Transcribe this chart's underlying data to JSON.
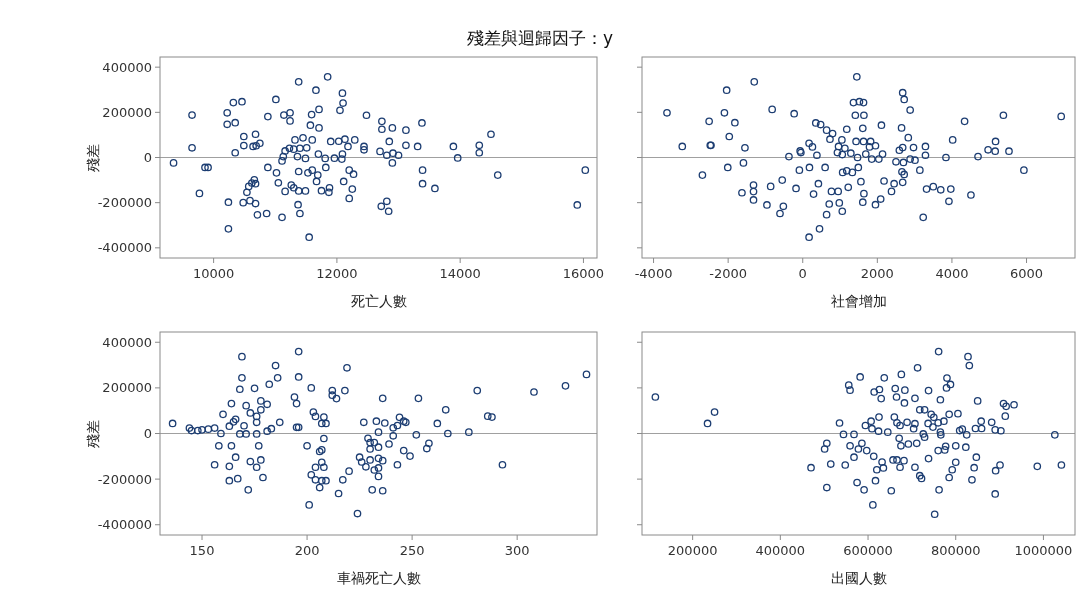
{
  "chart_data": [
    {
      "type": "scatter",
      "title": "殘差與迴歸因子：y",
      "xlabel": "死亡人數",
      "ylabel": "殘差",
      "marker": "circle",
      "xlim": [
        9130,
        16220
      ],
      "ylim": [
        -445000,
        445000
      ],
      "xticks": [
        10000,
        12000,
        14000,
        16000
      ],
      "yticks": [
        -400000,
        -200000,
        0,
        200000,
        400000
      ],
      "ref_lines": [
        {
          "axis": "y",
          "value": 0,
          "color": "#a0a0a0"
        }
      ],
      "series": [
        {
          "color": "#1c3d72",
          "x": [
            9350,
            9650,
            9650,
            9770,
            9860,
            9910,
            10220,
            10320,
            10460,
            10220,
            10350,
            10240,
            10240,
            10350,
            10490,
            10490,
            10680,
            10640,
            10690,
            10750,
            10660,
            10620,
            10680,
            10570,
            10540,
            10590,
            10480,
            10680,
            10710,
            10860,
            10880,
            11010,
            10880,
            11020,
            11050,
            11110,
            11160,
            11110,
            11140,
            11240,
            11240,
            11320,
            11450,
            11600,
            11160,
            11230,
            11300,
            11400,
            11510,
            11360,
            11130,
            11490,
            11380,
            11660,
            11850,
            11590,
            11710,
            11570,
            11710,
            11700,
            11810,
            11960,
            12080,
            12090,
            11900,
            12030,
            12130,
            12290,
            12180,
            12440,
            12440,
            12090,
            12100,
            12050,
            12480,
            11380,
            11530,
            11600,
            11690,
            11670,
            11820,
            11260,
            11300,
            11380,
            11490,
            11370,
            11400,
            11550,
            11750,
            11870,
            11880,
            12110,
            12200,
            12270,
            12250,
            12200,
            12730,
            12730,
            12900,
            13120,
            13380,
            12850,
            12700,
            12810,
            12910,
            13000,
            13120,
            13310,
            12900,
            12720,
            12810,
            12840,
            13390,
            13390,
            13590,
            13890,
            13960,
            14310,
            14310,
            14500,
            14610,
            15900,
            16030
          ],
          "values": [
            -24000,
            188000,
            43000,
            -159000,
            -44000,
            -44000,
            198000,
            243000,
            247000,
            147000,
            154000,
            -198000,
            -316000,
            21000,
            93000,
            53000,
            103000,
            49000,
            52000,
            63000,
            -99000,
            -113000,
            -116000,
            -128000,
            -154000,
            -191000,
            -200000,
            -204000,
            -254000,
            -248000,
            181000,
            257000,
            -44000,
            -68000,
            -112000,
            -265000,
            -150000,
            -15000,
            188000,
            198000,
            162000,
            78000,
            87000,
            78000,
            29000,
            41000,
            37000,
            41000,
            43000,
            4000,
            4000,
            -4000,
            335000,
            298000,
            357000,
            190000,
            213000,
            143000,
            131000,
            15000,
            -4000,
            -3000,
            -7000,
            15000,
            71000,
            72000,
            81000,
            78000,
            49000,
            49000,
            34000,
            285000,
            241000,
            209000,
            187000,
            -62000,
            -68000,
            -56000,
            -78000,
            -106000,
            -44000,
            -122000,
            -134000,
            -148000,
            -148000,
            -209000,
            -248000,
            -353000,
            -147000,
            -154000,
            -134000,
            -106000,
            -56000,
            -74000,
            -140000,
            -181000,
            160000,
            125000,
            131000,
            121000,
            153000,
            71000,
            27000,
            10000,
            19000,
            10000,
            54000,
            49000,
            -24000,
            -216000,
            -194000,
            -238000,
            -56000,
            -116000,
            -137000,
            49000,
            -2000,
            54000,
            21000,
            103000,
            -78000,
            -210000,
            -56000
          ]
        }
      ]
    },
    {
      "type": "scatter",
      "xlabel": "社會增加",
      "marker": "circle",
      "tick_labels": "x",
      "xlim": [
        -4310,
        7300
      ],
      "ylim": [
        -445000,
        445000
      ],
      "xticks": [
        -4000,
        -2000,
        0,
        2000,
        4000,
        6000
      ],
      "yticks": [
        -400000,
        -200000,
        0,
        200000,
        400000
      ],
      "ref_lines": [
        {
          "axis": "y",
          "value": 0,
          "color": "#a0a0a0"
        }
      ],
      "series": [
        {
          "color": "#1c3d72",
          "x": [
            -3640,
            -3230,
            -2510,
            -2480,
            -2460,
            -2690,
            -2040,
            -1300,
            -2100,
            -1820,
            -1970,
            -1550,
            -2010,
            -1590,
            -820,
            -230,
            -1630,
            -1320,
            -1320,
            -1320,
            -960,
            -860,
            -550,
            -520,
            -610,
            -370,
            -70,
            -50,
            170,
            260,
            380,
            -90,
            180,
            600,
            -180,
            290,
            420,
            450,
            170,
            640,
            710,
            980,
            1060,
            770,
            950,
            1220,
            350,
            480,
            640,
            800,
            730,
            1050,
            960,
            1130,
            930,
            1060,
            1290,
            1180,
            1610,
            1430,
            1630,
            1820,
            1950,
            1790,
            1470,
            1690,
            1850,
            2040,
            2140,
            1070,
            1180,
            1330,
            1490,
            1560,
            1640,
            1610,
            1950,
            2090,
            2180,
            2450,
            2380,
            1450,
            1360,
            1520,
            1630,
            1410,
            1640,
            2110,
            2650,
            2830,
            2680,
            2720,
            2880,
            2590,
            2680,
            2970,
            3290,
            2500,
            2700,
            2880,
            3010,
            2660,
            2720,
            2680,
            3140,
            3290,
            3320,
            3500,
            3700,
            3970,
            3920,
            3230,
            3840,
            4020,
            4340,
            4510,
            4700,
            4970,
            5160,
            5170,
            5530,
            5380,
            5930,
            6930
          ],
          "values": [
            198000,
            49000,
            160000,
            54000,
            54000,
            -78000,
            298000,
            335000,
            198000,
            154000,
            93000,
            43000,
            -44000,
            -24000,
            213000,
            194000,
            -156000,
            -122000,
            -151000,
            -188000,
            -210000,
            -128000,
            -100000,
            -216000,
            -248000,
            4000,
            29000,
            22000,
            63000,
            47000,
            10000,
            -56000,
            -44000,
            -44000,
            -137000,
            -162000,
            -116000,
            -316000,
            -353000,
            -253000,
            -206000,
            -201000,
            -238000,
            -150000,
            -150000,
            -132000,
            153000,
            146000,
            121000,
            106000,
            81000,
            78000,
            49000,
            41000,
            22000,
            13000,
            19000,
            125000,
            129000,
            71000,
            71000,
            71000,
            52000,
            47000,
            0,
            15000,
            -7000,
            -7000,
            15000,
            -66000,
            -59000,
            -66000,
            -44000,
            -107000,
            -160000,
            -198000,
            -209000,
            -184000,
            -104000,
            -116000,
            -150000,
            357000,
            243000,
            247000,
            243000,
            187000,
            187000,
            143000,
            131000,
            88000,
            287000,
            257000,
            210000,
            32000,
            44000,
            44000,
            49000,
            -19000,
            -22000,
            -7000,
            -12000,
            -63000,
            -75000,
            -110000,
            -56000,
            10000,
            -140000,
            -129000,
            -143000,
            -140000,
            -194000,
            -265000,
            0,
            78000,
            160000,
            -166000,
            4000,
            34000,
            28000,
            71000,
            28000,
            187000,
            -56000,
            182000
          ]
        }
      ]
    },
    {
      "type": "scatter",
      "xlabel": "車禍死亡人數",
      "ylabel": "殘差",
      "marker": "circle",
      "xlim": [
        130,
        338
      ],
      "ylim": [
        -445000,
        445000
      ],
      "xticks": [
        150,
        200,
        250,
        300
      ],
      "yticks": [
        -400000,
        -200000,
        0,
        200000,
        400000
      ],
      "ref_lines": [
        {
          "axis": "y",
          "value": 0,
          "color": "#a0a0a0"
        }
      ],
      "series": [
        {
          "color": "#1c3d72",
          "x": [
            136,
            144,
            145,
            148,
            150,
            153,
            156,
            159,
            158,
            164,
            156,
            163,
            163,
            167,
            166,
            172,
            160,
            164,
            163,
            165,
            166,
            168,
            171,
            169,
            169,
            168,
            170,
            171,
            175,
            173,
            176,
            178,
            181,
            178,
            176,
            176,
            177,
            173,
            176,
            178,
            179,
            182,
            185,
            186,
            181,
            183,
            187,
            194,
            195,
            196,
            196,
            195,
            196,
            202,
            200,
            203,
            204,
            208,
            207,
            209,
            208,
            207,
            206,
            207,
            208,
            204,
            202,
            204,
            207,
            209,
            206,
            201,
            212,
            212,
            214,
            218,
            219,
            215,
            220,
            217,
            224,
            227,
            229,
            230,
            232,
            234,
            230,
            225,
            226,
            228,
            230,
            234,
            236,
            232,
            234,
            234,
            231,
            236,
            233,
            234,
            237,
            241,
            243,
            244,
            246,
            247,
            239,
            241,
            236,
            243,
            246,
            249,
            252,
            253,
            257,
            258,
            262,
            266,
            267,
            277,
            281,
            286,
            288,
            293,
            308,
            323,
            333
          ],
          "values": [
            44000,
            24000,
            13000,
            13000,
            16000,
            19000,
            24000,
            0,
            -54000,
            -54000,
            -137000,
            -144000,
            -207000,
            -198000,
            -104000,
            -247000,
            84000,
            131000,
            32000,
            51000,
            62000,
            -2000,
            -2000,
            337000,
            244000,
            194000,
            34000,
            122000,
            198000,
            90000,
            75000,
            104000,
            128000,
            143000,
            49000,
            -2000,
            -54000,
            -123000,
            -148000,
            -116000,
            -193000,
            216000,
            298000,
            244000,
            10000,
            21000,
            49000,
            160000,
            131000,
            359000,
            248000,
            27000,
            27000,
            200000,
            -54000,
            94000,
            75000,
            72000,
            44000,
            44000,
            -22000,
            -72000,
            -79000,
            -126000,
            -148000,
            -148000,
            -181000,
            -203000,
            -207000,
            -207000,
            -237000,
            -313000,
            188000,
            168000,
            153000,
            188000,
            288000,
            -263000,
            -165000,
            -203000,
            -351000,
            49000,
            -21000,
            -40000,
            -40000,
            -60000,
            -68000,
            -104000,
            -125000,
            -146000,
            -116000,
            -109000,
            -119000,
            -160000,
            -151000,
            -188000,
            -247000,
            -251000,
            54000,
            6000,
            46000,
            25000,
            35000,
            71000,
            54000,
            49000,
            -46000,
            -10000,
            154000,
            -137000,
            -75000,
            -99000,
            -6000,
            154000,
            -66000,
            -43000,
            44000,
            104000,
            0,
            6000,
            188000,
            76000,
            72000,
            -137000,
            182000,
            209000,
            259000
          ]
        }
      ]
    },
    {
      "type": "scatter",
      "xlabel": "出國人數",
      "marker": "circle",
      "tick_labels": "x",
      "xlim": [
        84500,
        1072000
      ],
      "ylim": [
        -445000,
        445000
      ],
      "xticks": [
        200000,
        400000,
        600000,
        800000,
        1000000
      ],
      "yticks": [
        -400000,
        -200000,
        0,
        200000,
        400000
      ],
      "ref_lines": [
        {
          "axis": "y",
          "value": 0,
          "color": "#a0a0a0"
        }
      ],
      "series": [
        {
          "color": "#1c3d72",
          "x": [
            115000,
            234000,
            250000,
            470000,
            506000,
            501000,
            515000,
            506000,
            535000,
            544000,
            568000,
            548000,
            556000,
            559000,
            559000,
            568000,
            582000,
            586000,
            578000,
            597000,
            594000,
            607000,
            609000,
            624000,
            645000,
            575000,
            591000,
            611000,
            617000,
            613000,
            620000,
            632000,
            635000,
            614000,
            626000,
            630000,
            637000,
            625000,
            653000,
            662000,
            665000,
            684000,
            676000,
            683000,
            707000,
            713000,
            660000,
            666000,
            673000,
            689000,
            707000,
            718000,
            729000,
            671000,
            675000,
            692000,
            711000,
            729000,
            704000,
            726000,
            737000,
            657000,
            666000,
            682000,
            673000,
            707000,
            718000,
            722000,
            738000,
            738000,
            744000,
            750000,
            760000,
            773000,
            785000,
            765000,
            761000,
            780000,
            788000,
            779000,
            805000,
            765000,
            766000,
            748000,
            760000,
            775000,
            777000,
            800000,
            823000,
            762000,
            752000,
            785000,
            792000,
            800000,
            809000,
            815000,
            825000,
            828000,
            831000,
            850000,
            845000,
            859000,
            858000,
            847000,
            842000,
            837000,
            882000,
            890000,
            903000,
            909000,
            915000,
            933000,
            913000,
            891000,
            901000,
            890000,
            986000,
            1026000,
            1041000
          ],
          "values": [
            160000,
            44000,
            94000,
            -150000,
            -43000,
            -68000,
            -134000,
            -237000,
            46000,
            -4000,
            -4000,
            -138000,
            212000,
            190000,
            -54000,
            -104000,
            248000,
            -43000,
            -68000,
            -75000,
            35000,
            54000,
            21000,
            10000,
            6000,
            -215000,
            -247000,
            -313000,
            -207000,
            -100000,
            -159000,
            -125000,
            -151000,
            182000,
            193000,
            153000,
            244000,
            72000,
            -251000,
            197000,
            160000,
            190000,
            259000,
            134000,
            154000,
            288000,
            72000,
            47000,
            35000,
            49000,
            43000,
            104000,
            104000,
            -21000,
            -54000,
            -46000,
            -43000,
            -16000,
            21000,
            -2000,
            44000,
            -116000,
            -116000,
            -119000,
            -148000,
            -148000,
            -185000,
            -197000,
            -110000,
            188000,
            84000,
            71000,
            47000,
            54000,
            84000,
            148000,
            359000,
            243000,
            215000,
            200000,
            87000,
            6000,
            -6000,
            28000,
            -75000,
            -72000,
            -56000,
            -54000,
            -60000,
            -247000,
            -354000,
            -193000,
            -159000,
            -126000,
            13000,
            19000,
            -6000,
            337000,
            298000,
            143000,
            22000,
            22000,
            54000,
            -104000,
            -150000,
            -203000,
            49000,
            16000,
            12000,
            131000,
            119000,
            126000,
            76000,
            -163000,
            -138000,
            -265000,
            -144000,
            -6000,
            -138000
          ]
        }
      ]
    }
  ]
}
